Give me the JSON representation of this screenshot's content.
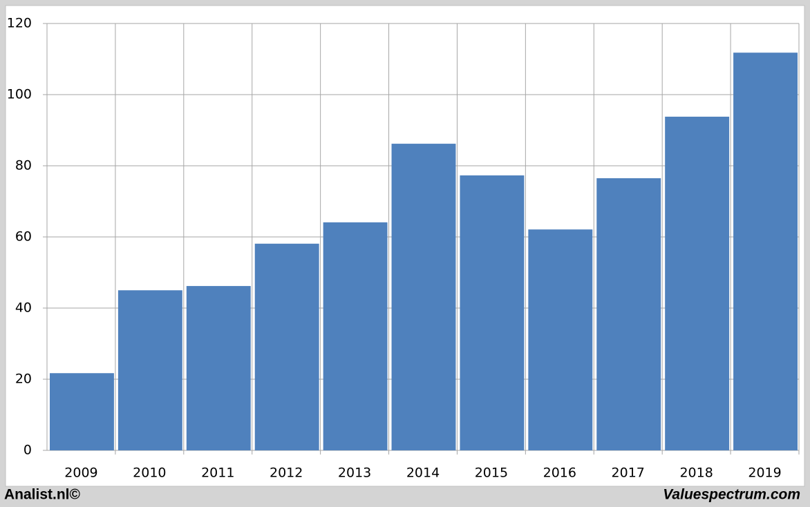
{
  "chart_data": {
    "type": "bar",
    "categories": [
      "2009",
      "2010",
      "2011",
      "2012",
      "2013",
      "2014",
      "2015",
      "2016",
      "2017",
      "2018",
      "2019"
    ],
    "values": [
      21.7,
      45.0,
      46.2,
      58.1,
      64.1,
      86.2,
      77.3,
      62.1,
      76.5,
      93.8,
      111.8
    ],
    "color": "#4f81bd",
    "ylim": [
      0,
      120
    ],
    "yticks": [
      0,
      20,
      40,
      60,
      80,
      100,
      120
    ],
    "grid": true,
    "source_left": "Analist.nl©",
    "source_right": "Valuespectrum.com"
  }
}
